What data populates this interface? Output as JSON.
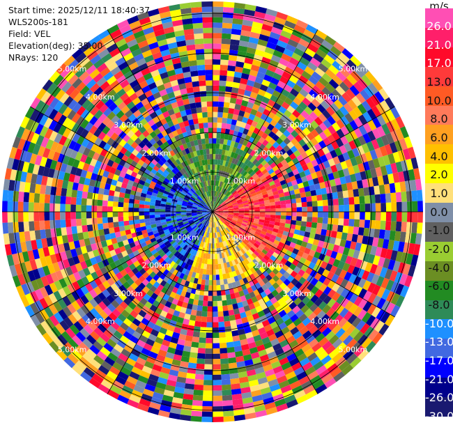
{
  "info": {
    "start_time": "Start time: 2025/12/11 18:40:37",
    "instrument": "WLS200s-181",
    "field": "Field: VEL",
    "elevation": "Elevation(deg): 35.00",
    "nrays": "NRays: 120"
  },
  "chart_data": {
    "type": "heatmap",
    "projection": "polar-ppi",
    "field": "VEL",
    "nrays": 120,
    "elevation_deg": 35.0,
    "range_ring_labels": [
      "1.00km",
      "2.00km",
      "3.00km",
      "4.00km",
      "5.00km"
    ],
    "range_max_km": 5.3,
    "colorbar": {
      "unit": "m/s",
      "ticks": [
        "26.0",
        "21.0",
        "17.0",
        "13.0",
        "10.0",
        "8.0",
        "6.0",
        "4.0",
        "2.0",
        "1.0",
        "0.0",
        "-1.0",
        "-2.0",
        "-4.0",
        "-6.0",
        "-8.0",
        "-10.0",
        "-13.0",
        "-17.0",
        "-21.0",
        "-26.0",
        "-30.0"
      ],
      "colors": [
        "#ff4fb4",
        "#ff1f6a",
        "#ff0a2a",
        "#ff3a3a",
        "#ff5a24",
        "#ff7a5a",
        "#ffa020",
        "#ffc000",
        "#ffff00",
        "#ffe07a",
        "#7f8fa8",
        "#606060",
        "#9acd32",
        "#6b8e23",
        "#228b22",
        "#2e8b57",
        "#1e90ff",
        "#4169e1",
        "#0000ff",
        "#00008b",
        "#191970"
      ],
      "nearfield_pattern": "approaching winds (blue) from west, receding (red) to east, yellow to south, green to north"
    }
  }
}
